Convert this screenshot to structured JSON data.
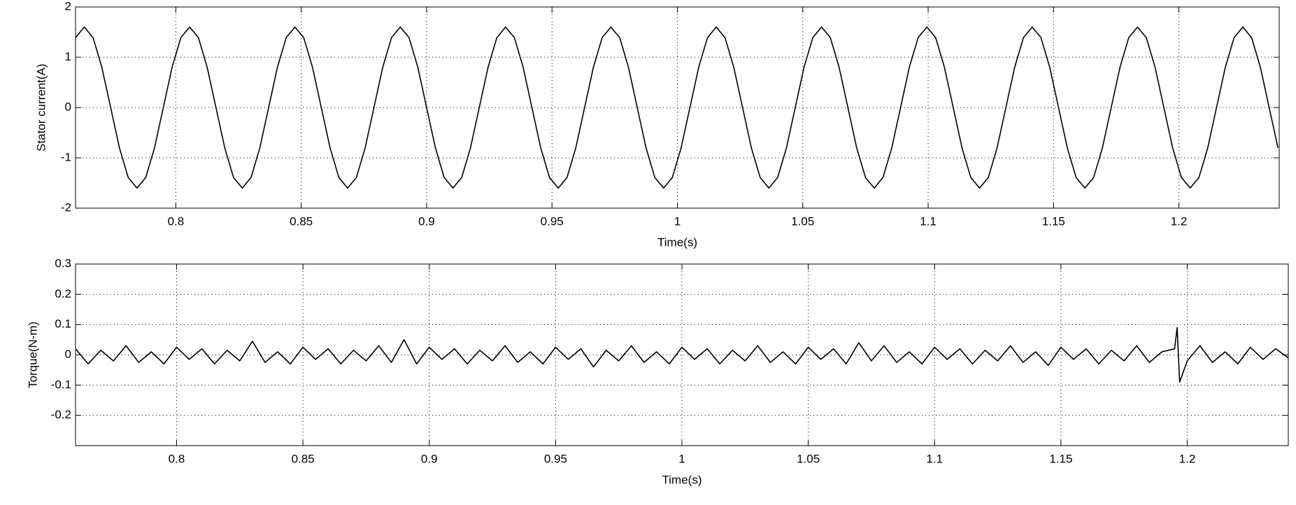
{
  "chart_data": [
    {
      "type": "line",
      "ylabel": "Stator current(A)",
      "xlabel": "Time(s)",
      "grid": true,
      "xlim": [
        0.76,
        1.24
      ],
      "ylim": [
        -2,
        2
      ],
      "xticks": [
        0.8,
        0.85,
        0.9,
        0.95,
        1,
        1.05,
        1.1,
        1.15,
        1.2
      ],
      "yticks": [
        -2,
        -1,
        0,
        1,
        2
      ],
      "x": [
        0.76,
        0.7635,
        0.767,
        0.7705,
        0.774,
        0.7775,
        0.781,
        0.7845,
        0.788,
        0.7915,
        0.795,
        0.7985,
        0.802,
        0.8055,
        0.809,
        0.8125,
        0.816,
        0.8195,
        0.823,
        0.8265,
        0.83,
        0.8335,
        0.837,
        0.8405,
        0.844,
        0.8475,
        0.851,
        0.8545,
        0.858,
        0.8615,
        0.865,
        0.8685,
        0.872,
        0.8755,
        0.879,
        0.8825,
        0.886,
        0.8895,
        0.893,
        0.8965,
        0.9,
        0.9035,
        0.907,
        0.9105,
        0.914,
        0.9175,
        0.921,
        0.9245,
        0.928,
        0.9315,
        0.935,
        0.9385,
        0.942,
        0.9455,
        0.949,
        0.9525,
        0.956,
        0.9595,
        0.963,
        0.9665,
        0.97,
        0.9735,
        0.977,
        0.9805,
        0.984,
        0.9875,
        0.991,
        0.9945,
        0.998,
        1.0015,
        1.005,
        1.0085,
        1.012,
        1.0155,
        1.019,
        1.0225,
        1.026,
        1.0295,
        1.033,
        1.0365,
        1.04,
        1.0435,
        1.047,
        1.0505,
        1.054,
        1.0575,
        1.061,
        1.0645,
        1.068,
        1.0715,
        1.075,
        1.0785,
        1.082,
        1.0855,
        1.089,
        1.0925,
        1.096,
        1.0995,
        1.103,
        1.1065,
        1.11,
        1.1135,
        1.117,
        1.1205,
        1.124,
        1.1275,
        1.131,
        1.1345,
        1.138,
        1.1415,
        1.145,
        1.1485,
        1.152,
        1.1555,
        1.159,
        1.1625,
        1.166,
        1.1695,
        1.173,
        1.1765,
        1.18,
        1.1835,
        1.187,
        1.1905,
        1.194,
        1.1975,
        1.201,
        1.2045,
        1.208,
        1.2115,
        1.215,
        1.2185,
        1.222,
        1.2255,
        1.229,
        1.2325,
        1.236,
        1.2395
      ],
      "series": [
        {
          "color": "#000000",
          "values": [
            1.39,
            1.6,
            1.39,
            0.8,
            0,
            -0.8,
            -1.39,
            -1.6,
            -1.39,
            -0.8,
            0,
            0.8,
            1.39,
            1.6,
            1.39,
            0.8,
            0,
            -0.8,
            -1.39,
            -1.6,
            -1.39,
            -0.8,
            0,
            0.8,
            1.39,
            1.6,
            1.39,
            0.8,
            0,
            -0.8,
            -1.39,
            -1.6,
            -1.39,
            -0.8,
            0,
            0.8,
            1.39,
            1.6,
            1.39,
            0.8,
            0,
            -0.8,
            -1.39,
            -1.6,
            -1.39,
            -0.8,
            0,
            0.8,
            1.39,
            1.6,
            1.39,
            0.8,
            0,
            -0.8,
            -1.39,
            -1.6,
            -1.39,
            -0.8,
            0,
            0.8,
            1.39,
            1.6,
            1.39,
            0.8,
            0,
            -0.8,
            -1.39,
            -1.6,
            -1.39,
            -0.8,
            0,
            0.8,
            1.39,
            1.6,
            1.39,
            0.8,
            0,
            -0.8,
            -1.39,
            -1.6,
            -1.39,
            -0.8,
            0,
            0.8,
            1.39,
            1.6,
            1.39,
            0.8,
            0,
            -0.8,
            -1.39,
            -1.6,
            -1.39,
            -0.8,
            0,
            0.8,
            1.39,
            1.6,
            1.39,
            0.8,
            0,
            -0.8,
            -1.39,
            -1.6,
            -1.39,
            -0.8,
            0,
            0.8,
            1.39,
            1.6,
            1.39,
            0.8,
            0,
            -0.8,
            -1.39,
            -1.6,
            -1.39,
            -0.8,
            0,
            0.8,
            1.39,
            1.6,
            1.39,
            0.8,
            0,
            -0.8,
            -1.39,
            -1.6,
            -1.39,
            -0.8,
            0,
            0.8,
            1.39,
            1.6,
            1.39,
            0.8,
            0,
            -0.8
          ]
        }
      ]
    },
    {
      "type": "line",
      "ylabel": "Torque(N-m)",
      "xlabel": "Time(s)",
      "grid": true,
      "xlim": [
        0.76,
        1.24
      ],
      "ylim": [
        -0.3,
        0.3
      ],
      "xticks": [
        0.8,
        0.85,
        0.9,
        0.95,
        1,
        1.05,
        1.1,
        1.15,
        1.2
      ],
      "yticks": [
        -0.2,
        -0.1,
        0,
        0.1,
        0.2,
        0.3
      ],
      "x": [
        0.76,
        0.765,
        0.77,
        0.775,
        0.78,
        0.785,
        0.79,
        0.795,
        0.8,
        0.805,
        0.81,
        0.815,
        0.82,
        0.825,
        0.83,
        0.835,
        0.84,
        0.845,
        0.85,
        0.855,
        0.86,
        0.865,
        0.87,
        0.875,
        0.88,
        0.885,
        0.89,
        0.895,
        0.9,
        0.905,
        0.91,
        0.915,
        0.92,
        0.925,
        0.93,
        0.935,
        0.94,
        0.945,
        0.95,
        0.955,
        0.96,
        0.965,
        0.97,
        0.975,
        0.98,
        0.985,
        0.99,
        0.995,
        1,
        1.005,
        1.01,
        1.015,
        1.02,
        1.025,
        1.03,
        1.035,
        1.04,
        1.045,
        1.05,
        1.055,
        1.06,
        1.065,
        1.07,
        1.075,
        1.08,
        1.085,
        1.09,
        1.095,
        1.1,
        1.105,
        1.11,
        1.115,
        1.12,
        1.125,
        1.13,
        1.135,
        1.14,
        1.145,
        1.15,
        1.155,
        1.16,
        1.165,
        1.17,
        1.175,
        1.18,
        1.185,
        1.19,
        1.195,
        1.196,
        1.197,
        1.2,
        1.205,
        1.21,
        1.215,
        1.22,
        1.225,
        1.23,
        1.235,
        1.24
      ],
      "series": [
        {
          "color": "#000000",
          "values": [
            0.02,
            -0.03,
            0.015,
            -0.02,
            0.03,
            -0.025,
            0.01,
            -0.03,
            0.025,
            -0.015,
            0.02,
            -0.03,
            0.015,
            -0.02,
            0.045,
            -0.025,
            0.01,
            -0.03,
            0.025,
            -0.015,
            0.02,
            -0.03,
            0.015,
            -0.02,
            0.03,
            -0.025,
            0.05,
            -0.03,
            0.025,
            -0.015,
            0.02,
            -0.03,
            0.015,
            -0.02,
            0.03,
            -0.025,
            0.01,
            -0.03,
            0.025,
            -0.015,
            0.02,
            -0.04,
            0.015,
            -0.02,
            0.03,
            -0.025,
            0.01,
            -0.03,
            0.025,
            -0.015,
            0.02,
            -0.03,
            0.015,
            -0.02,
            0.03,
            -0.025,
            0.01,
            -0.03,
            0.025,
            -0.015,
            0.02,
            -0.03,
            0.04,
            -0.02,
            0.03,
            -0.025,
            0.01,
            -0.03,
            0.025,
            -0.015,
            0.02,
            -0.03,
            0.015,
            -0.02,
            0.03,
            -0.025,
            0.01,
            -0.035,
            0.025,
            -0.015,
            0.02,
            -0.03,
            0.015,
            -0.02,
            0.03,
            -0.025,
            0.01,
            0.02,
            0.09,
            -0.09,
            -0.02,
            0.03,
            -0.025,
            0.01,
            -0.03,
            0.025,
            -0.015,
            0.02,
            -0.01
          ]
        }
      ]
    }
  ]
}
